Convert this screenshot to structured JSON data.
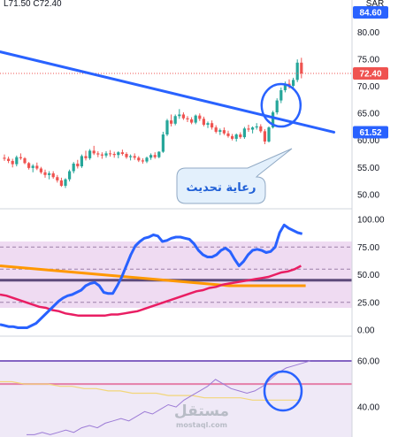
{
  "ohlc_header": {
    "text": "L71.50  C72.40"
  },
  "chart_data": {
    "type": "candlestick",
    "colors": {
      "up": "#26a69a",
      "down": "#ef5350",
      "trendline": "#2962ff",
      "rsi_line": "#2962ff",
      "rsi_ma_red": "#e91e63",
      "rsi_ma_orange": "#ff9800",
      "band_fill": "#e1bee7",
      "midline": "#5d4a7a",
      "callout_fill": "#e3f0fc",
      "callout_stroke": "#90a9c4"
    },
    "currency_label": "SAR",
    "price_panel": {
      "ylim": [
        48,
        86
      ],
      "ticks": [
        "80.00",
        "75.00",
        "70.00",
        "65.00",
        "60.00",
        "55.00",
        "50.00"
      ],
      "candles": [
        [
          56.8,
          57.4,
          56.2,
          56.6
        ],
        [
          56.6,
          57.0,
          55.8,
          56.2
        ],
        [
          56.2,
          56.6,
          55.0,
          55.6
        ],
        [
          55.6,
          57.2,
          55.2,
          56.9
        ],
        [
          56.9,
          57.6,
          56.4,
          56.7
        ],
        [
          56.7,
          56.9,
          55.6,
          55.8
        ],
        [
          55.8,
          56.0,
          54.6,
          54.9
        ],
        [
          54.9,
          55.6,
          54.1,
          55.3
        ],
        [
          55.3,
          55.9,
          54.5,
          54.8
        ],
        [
          54.8,
          55.1,
          53.8,
          54.1
        ],
        [
          54.1,
          54.6,
          53.1,
          53.6
        ],
        [
          53.6,
          54.3,
          52.8,
          53.9
        ],
        [
          53.9,
          54.3,
          52.9,
          53.2
        ],
        [
          53.2,
          53.6,
          52.2,
          52.6
        ],
        [
          52.6,
          53.1,
          51.4,
          51.6
        ],
        [
          51.6,
          53.0,
          51.2,
          52.8
        ],
        [
          52.8,
          54.6,
          52.4,
          54.3
        ],
        [
          54.3,
          56.0,
          53.9,
          55.7
        ],
        [
          55.7,
          56.4,
          54.8,
          55.2
        ],
        [
          55.2,
          57.4,
          54.9,
          57.1
        ],
        [
          57.1,
          58.1,
          56.3,
          56.7
        ],
        [
          56.7,
          58.4,
          56.4,
          58.1
        ],
        [
          58.1,
          59.0,
          57.3,
          57.6
        ],
        [
          57.6,
          58.0,
          56.9,
          57.4
        ],
        [
          57.4,
          57.8,
          56.6,
          57.2
        ],
        [
          57.2,
          58.0,
          56.8,
          57.6
        ],
        [
          57.6,
          58.2,
          57.0,
          57.5
        ],
        [
          57.5,
          57.9,
          56.8,
          57.3
        ],
        [
          57.3,
          58.0,
          56.7,
          57.8
        ],
        [
          57.8,
          58.3,
          57.2,
          57.5
        ],
        [
          57.5,
          57.8,
          56.6,
          56.9
        ],
        [
          56.9,
          57.4,
          56.3,
          57.1
        ],
        [
          57.1,
          57.6,
          56.4,
          56.8
        ],
        [
          56.8,
          57.1,
          56.0,
          56.3
        ],
        [
          56.3,
          56.7,
          55.7,
          56.1
        ],
        [
          56.1,
          57.0,
          55.8,
          56.8
        ],
        [
          56.8,
          57.6,
          56.4,
          57.3
        ],
        [
          57.3,
          57.8,
          56.6,
          56.9
        ],
        [
          56.9,
          58.0,
          56.7,
          57.9
        ],
        [
          57.9,
          61.6,
          57.7,
          61.1
        ],
        [
          61.1,
          64.0,
          60.8,
          63.7
        ],
        [
          63.7,
          64.8,
          62.6,
          63.1
        ],
        [
          63.1,
          64.8,
          62.8,
          64.5
        ],
        [
          64.5,
          65.8,
          64.0,
          64.8
        ],
        [
          64.8,
          65.2,
          63.8,
          64.1
        ],
        [
          64.1,
          64.5,
          63.4,
          63.9
        ],
        [
          63.9,
          64.3,
          63.0,
          63.3
        ],
        [
          63.3,
          64.8,
          63.0,
          64.6
        ],
        [
          64.6,
          65.0,
          63.6,
          64.0
        ],
        [
          64.0,
          64.4,
          62.6,
          62.9
        ],
        [
          62.9,
          63.5,
          62.3,
          63.2
        ],
        [
          63.2,
          63.7,
          62.0,
          62.4
        ],
        [
          62.4,
          62.8,
          61.3,
          61.6
        ],
        [
          61.6,
          62.2,
          61.0,
          61.9
        ],
        [
          61.9,
          62.4,
          61.0,
          61.3
        ],
        [
          61.3,
          61.8,
          60.5,
          60.8
        ],
        [
          60.8,
          61.2,
          60.0,
          60.3
        ],
        [
          60.3,
          61.3,
          59.8,
          61.1
        ],
        [
          61.1,
          61.5,
          60.3,
          60.6
        ],
        [
          60.6,
          62.5,
          60.3,
          62.2
        ],
        [
          62.2,
          62.9,
          61.6,
          62.0
        ],
        [
          62.0,
          62.6,
          61.3,
          62.4
        ],
        [
          62.4,
          63.2,
          62.0,
          62.6
        ],
        [
          62.6,
          63.0,
          61.4,
          61.7
        ],
        [
          61.7,
          62.1,
          59.3,
          59.8
        ],
        [
          59.8,
          62.6,
          59.6,
          62.4
        ],
        [
          62.4,
          65.5,
          62.2,
          65.2
        ],
        [
          65.2,
          67.8,
          64.8,
          67.4
        ],
        [
          67.4,
          69.8,
          66.9,
          69.3
        ],
        [
          69.3,
          70.9,
          68.9,
          70.5
        ],
        [
          70.5,
          71.3,
          69.6,
          70.1
        ],
        [
          70.1,
          71.6,
          69.7,
          71.2
        ],
        [
          71.2,
          75.0,
          70.8,
          74.4
        ],
        [
          74.4,
          75.3,
          71.5,
          72.4
        ]
      ],
      "last_price": "72.40",
      "top_badge": "84.60",
      "trendline_badge": "61.52",
      "trendline": {
        "from": [
          -1,
          76.4
        ],
        "to": [
          81,
          61.52
        ]
      },
      "callout": {
        "text": "رعاية تحديث"
      }
    },
    "rsi_panel": {
      "ylim": [
        -4,
        108
      ],
      "ticks": [
        "100.00",
        "75.00",
        "50.00",
        "25.00",
        "0.00"
      ],
      "bands": [
        80,
        20
      ],
      "dashed_levels": [
        75,
        55,
        25
      ],
      "midline": 45,
      "series": {
        "rsi": [
          5,
          4,
          3,
          3,
          2,
          2,
          2,
          4,
          6,
          10,
          14,
          18,
          22,
          26,
          29,
          31,
          32,
          34,
          36,
          40,
          42,
          43,
          40,
          34,
          33,
          33,
          40,
          48,
          58,
          68,
          76,
          80,
          83,
          84,
          86,
          85,
          80,
          81,
          83,
          84,
          84,
          83,
          82,
          78,
          72,
          68,
          66,
          66,
          68,
          72,
          74,
          71,
          64,
          58,
          62,
          68,
          72,
          73,
          72,
          70,
          71,
          75,
          88,
          95,
          92,
          90,
          88,
          87
        ],
        "ma_red": [
          32,
          31,
          29,
          27,
          25,
          23,
          21,
          20,
          18,
          17,
          15,
          14,
          13,
          13,
          13,
          13,
          13,
          14,
          14,
          15,
          16,
          17,
          19,
          21,
          23,
          25,
          27,
          29,
          31,
          33,
          35,
          36,
          38,
          39,
          41,
          42,
          43,
          44,
          45,
          46,
          47,
          48,
          50,
          52,
          53,
          55,
          58
        ],
        "ma_orange": [
          58,
          57,
          56,
          55,
          54,
          53,
          52,
          51,
          50,
          49,
          48,
          47,
          46,
          45,
          44,
          43,
          42,
          41,
          40,
          40,
          40,
          40,
          40,
          40,
          40
        ]
      }
    },
    "lower_panel": {
      "ylim": [
        27,
        70
      ],
      "ticks": [
        "60.00",
        "40.00"
      ],
      "bands": [
        60,
        50
      ],
      "series": {
        "line_purple": [
          28,
          28,
          29,
          28,
          29,
          30,
          29,
          31,
          32,
          31,
          33,
          34,
          35,
          34,
          36,
          38,
          37,
          39,
          41,
          40,
          43,
          45,
          47,
          49,
          52,
          50,
          48,
          47,
          46,
          47,
          49,
          52,
          55,
          57,
          58,
          59,
          60
        ],
        "line_yellow": [
          51,
          51,
          50,
          50,
          50,
          49,
          49,
          48,
          48,
          47,
          47,
          46,
          46,
          46,
          45,
          45,
          45,
          44,
          44,
          44,
          44,
          43,
          43,
          43,
          43,
          43
        ]
      }
    },
    "watermark": {
      "text": "مستقل",
      "sub": "mostaql.com"
    }
  }
}
